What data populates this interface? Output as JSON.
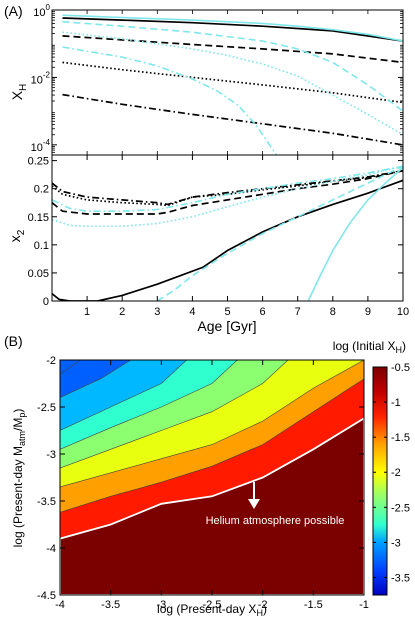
{
  "chart_data": [
    {
      "panel_label": "(A)",
      "type": "line",
      "ylabel_main": "X",
      "ylabel_sub": "H",
      "y_scale": "log",
      "ylim": [
        5e-05,
        1
      ],
      "xlim": [
        0,
        10
      ],
      "y_ticks": [
        {
          "value": 0.0001,
          "base": "10",
          "exp": "-4"
        },
        {
          "value": 0.01,
          "base": "10",
          "exp": "-2"
        },
        {
          "value": 1,
          "base": "10",
          "exp": "0"
        }
      ],
      "colors": {
        "black": "#000000",
        "cyan": "#7fe7ea"
      },
      "series": [
        {
          "color": "black",
          "dash": "solid",
          "points": [
            [
              0.3,
              0.58
            ],
            [
              2,
              0.5
            ],
            [
              4,
              0.42
            ],
            [
              6,
              0.33
            ],
            [
              8,
              0.24
            ],
            [
              10,
              0.12
            ]
          ]
        },
        {
          "color": "black",
          "dash": "dashed",
          "points": [
            [
              0.3,
              0.17
            ],
            [
              2,
              0.13
            ],
            [
              4,
              0.095
            ],
            [
              6,
              0.07
            ],
            [
              8,
              0.05
            ],
            [
              10,
              0.028
            ]
          ]
        },
        {
          "color": "black",
          "dash": "dotted",
          "points": [
            [
              0.3,
              0.028
            ],
            [
              2,
              0.017
            ],
            [
              4,
              0.01
            ],
            [
              6,
              0.006
            ],
            [
              8,
              0.0035
            ],
            [
              10,
              0.0018
            ]
          ]
        },
        {
          "color": "black",
          "dash": "dashdot",
          "points": [
            [
              0.3,
              0.0031
            ],
            [
              2,
              0.0016
            ],
            [
              4,
              0.0008
            ],
            [
              6,
              0.00042
            ],
            [
              8,
              0.00022
            ],
            [
              10,
              0.0001
            ]
          ]
        },
        {
          "color": "cyan",
          "dash": "solid",
          "points": [
            [
              0.3,
              0.7
            ],
            [
              2,
              0.6
            ],
            [
              4,
              0.5
            ],
            [
              6,
              0.4
            ],
            [
              7,
              0.33
            ],
            [
              8,
              0.26
            ],
            [
              9,
              0.19
            ],
            [
              10,
              0.12
            ]
          ]
        },
        {
          "color": "cyan",
          "dash": "dashed",
          "points": [
            [
              0.3,
              0.45
            ],
            [
              2,
              0.33
            ],
            [
              4,
              0.22
            ],
            [
              6,
              0.12
            ],
            [
              7,
              0.07
            ],
            [
              8,
              0.028
            ],
            [
              9,
              0.006
            ],
            [
              10,
              0.001
            ]
          ]
        },
        {
          "color": "cyan",
          "dash": "dotted",
          "points": [
            [
              0.3,
              0.22
            ],
            [
              2,
              0.14
            ],
            [
              4,
              0.07
            ],
            [
              5,
              0.045
            ],
            [
              6,
              0.025
            ],
            [
              7,
              0.011
            ],
            [
              8,
              0.003
            ],
            [
              9,
              0.0008
            ],
            [
              10,
              0.0002
            ]
          ]
        },
        {
          "color": "cyan",
          "dash": "dashdot",
          "points": [
            [
              0.3,
              0.08
            ],
            [
              2,
              0.04
            ],
            [
              3,
              0.022
            ],
            [
              4,
              0.009
            ],
            [
              4.7,
              0.004
            ],
            [
              5.3,
              0.0015
            ],
            [
              5.8,
              0.0004
            ],
            [
              6.2,
              0.0001
            ],
            [
              6.4,
              5e-05
            ]
          ]
        }
      ]
    },
    {
      "type": "line",
      "ylabel_main": "x",
      "ylabel_sub": "2",
      "xlabel": "Age [Gyr]",
      "xlim": [
        0,
        10
      ],
      "ylim": [
        0,
        0.26
      ],
      "x_ticks": [
        "1",
        "2",
        "3",
        "4",
        "5",
        "6",
        "7",
        "8",
        "9",
        "10"
      ],
      "y_ticks": [
        "0",
        "0.05",
        "0.1",
        "0.15",
        "0.2",
        "0.25"
      ],
      "colors": {
        "black": "#000000",
        "cyan": "#7fe7ea"
      },
      "series": [
        {
          "color": "black",
          "dash": "solid",
          "points": [
            [
              0,
              0.013
            ],
            [
              0.2,
              0.003
            ],
            [
              0.5,
              0
            ],
            [
              1.3,
              0
            ],
            [
              2,
              0.01
            ],
            [
              3,
              0.03
            ],
            [
              4.3,
              0.06
            ],
            [
              5,
              0.09
            ],
            [
              6,
              0.123
            ],
            [
              7,
              0.15
            ],
            [
              8,
              0.172
            ],
            [
              9,
              0.192
            ],
            [
              10,
              0.215
            ]
          ]
        },
        {
          "color": "black",
          "dash": "dashed",
          "points": [
            [
              0,
              0.175
            ],
            [
              0.3,
              0.16
            ],
            [
              1,
              0.155
            ],
            [
              2,
              0.155
            ],
            [
              3,
              0.155
            ],
            [
              3.3,
              0.158
            ],
            [
              4,
              0.17
            ],
            [
              5,
              0.18
            ],
            [
              6,
              0.19
            ],
            [
              7,
              0.2
            ],
            [
              8,
              0.208
            ],
            [
              9,
              0.218
            ],
            [
              10,
              0.232
            ]
          ]
        },
        {
          "color": "black",
          "dash": "dotted",
          "points": [
            [
              0,
              0.205
            ],
            [
              0.3,
              0.19
            ],
            [
              1,
              0.18
            ],
            [
              2,
              0.175
            ],
            [
              3,
              0.172
            ],
            [
              3.3,
              0.17
            ],
            [
              4,
              0.185
            ],
            [
              5,
              0.19
            ],
            [
              6,
              0.198
            ],
            [
              7,
              0.205
            ],
            [
              8,
              0.213
            ],
            [
              9,
              0.22
            ],
            [
              10,
              0.232
            ]
          ]
        },
        {
          "color": "black",
          "dash": "dashdot",
          "points": [
            [
              0,
              0.21
            ],
            [
              0.3,
              0.195
            ],
            [
              1,
              0.185
            ],
            [
              2,
              0.18
            ],
            [
              3,
              0.175
            ],
            [
              3.3,
              0.172
            ],
            [
              4,
              0.185
            ],
            [
              5,
              0.193
            ],
            [
              6,
              0.2
            ],
            [
              7,
              0.207
            ],
            [
              8,
              0.214
            ],
            [
              9,
              0.221
            ],
            [
              10,
              0.232
            ]
          ]
        },
        {
          "color": "cyan",
          "dash": "solid",
          "points": [
            [
              7.3,
              0
            ],
            [
              7.6,
              0.04
            ],
            [
              8,
              0.09
            ],
            [
              8.5,
              0.14
            ],
            [
              9,
              0.18
            ],
            [
              9.5,
              0.21
            ],
            [
              10,
              0.238
            ]
          ]
        },
        {
          "color": "cyan",
          "dash": "dashed",
          "points": [
            [
              3,
              0
            ],
            [
              3.5,
              0.02
            ],
            [
              4,
              0.045
            ],
            [
              5,
              0.085
            ],
            [
              6,
              0.12
            ],
            [
              7,
              0.15
            ],
            [
              8,
              0.18
            ],
            [
              9,
              0.21
            ],
            [
              10,
              0.24
            ]
          ]
        },
        {
          "color": "cyan",
          "dash": "dotted",
          "points": [
            [
              0,
              0.145
            ],
            [
              0.5,
              0.135
            ],
            [
              1,
              0.133
            ],
            [
              2,
              0.133
            ],
            [
              3,
              0.138
            ],
            [
              4,
              0.15
            ],
            [
              5,
              0.168
            ],
            [
              6,
              0.185
            ],
            [
              7,
              0.2
            ],
            [
              8,
              0.213
            ],
            [
              9,
              0.225
            ],
            [
              10,
              0.24
            ]
          ]
        },
        {
          "color": "cyan",
          "dash": "dashdot",
          "points": [
            [
              0,
              0.18
            ],
            [
              0.5,
              0.165
            ],
            [
              1,
              0.16
            ],
            [
              2,
              0.16
            ],
            [
              3,
              0.163
            ],
            [
              4,
              0.175
            ],
            [
              5,
              0.19
            ],
            [
              6,
              0.2
            ],
            [
              7,
              0.21
            ],
            [
              8,
              0.218
            ],
            [
              9,
              0.228
            ],
            [
              10,
              0.24
            ]
          ]
        }
      ]
    },
    {
      "panel_label": "(B)",
      "type": "heatmap",
      "xlabel_main": "log (Present-day X",
      "xlabel_sub": "H",
      "xlabel_end": ")",
      "ylabel_main": "log (Present-day M",
      "ylabel_sub1": "atm",
      "ylabel_mid": "/M",
      "ylabel_sub2": "p",
      "ylabel_end": ")",
      "xlim": [
        -4,
        -1
      ],
      "ylim": [
        -4.5,
        -2
      ],
      "x_ticks": [
        "-4",
        "-3.5",
        "-3",
        "-2.5",
        "-2",
        "-1.5",
        "-1"
      ],
      "y_ticks": [
        "-4.5",
        "-4",
        "-3.5",
        "-3",
        "-2.5",
        "-2"
      ],
      "annotation": "Helium atmosphere possible",
      "colorbar_title_main": "log (Initial X",
      "colorbar_title_sub": "H",
      "colorbar_title_end": ")",
      "colorbar_range": [
        -3.75,
        -0.5
      ],
      "colorbar_ticks": [
        "-0.5",
        "-1",
        "-1.5",
        "-2",
        "-2.5",
        "-3",
        "-3.5"
      ],
      "colors": {
        "maroon": "#7b0000",
        "red": "#ff1a00",
        "orange": "#ffa000",
        "yellow": "#e8ff10",
        "green": "#8cff70",
        "cyan": "#30ffd0",
        "lightblue": "#00b8ff",
        "blue": "#0060ff",
        "boundary": "#ffffff"
      },
      "bands": [
        {
          "color": "maroon",
          "boundary": [
            [
              -4,
              -3.9
            ],
            [
              -3.5,
              -3.75
            ],
            [
              -3,
              -3.53
            ],
            [
              -2.5,
              -3.45
            ],
            [
              -2,
              -3.25
            ],
            [
              -1.5,
              -2.95
            ],
            [
              -1,
              -2.62
            ]
          ]
        },
        {
          "color": "red",
          "boundary": [
            [
              -4,
              -3.62
            ],
            [
              -3.5,
              -3.45
            ],
            [
              -3,
              -3.3
            ],
            [
              -2.5,
              -3.13
            ],
            [
              -2,
              -2.9
            ],
            [
              -1.5,
              -2.55
            ],
            [
              -1,
              -2.2
            ]
          ]
        },
        {
          "color": "orange",
          "boundary": [
            [
              -4,
              -3.35
            ],
            [
              -3.5,
              -3.2
            ],
            [
              -3,
              -3.05
            ],
            [
              -2.5,
              -2.9
            ],
            [
              -2,
              -2.65
            ],
            [
              -1.5,
              -2.3
            ],
            [
              -1,
              -2
            ]
          ]
        },
        {
          "color": "yellow",
          "boundary": [
            [
              -4,
              -3.15
            ],
            [
              -3.5,
              -2.95
            ],
            [
              -3,
              -2.75
            ],
            [
              -2.5,
              -2.55
            ],
            [
              -2,
              -2.25
            ],
            [
              -1.75,
              -2
            ]
          ]
        },
        {
          "color": "green",
          "boundary": [
            [
              -4,
              -2.95
            ],
            [
              -3.5,
              -2.72
            ],
            [
              -3,
              -2.5
            ],
            [
              -2.5,
              -2.25
            ],
            [
              -2.25,
              -2
            ]
          ]
        },
        {
          "color": "cyan",
          "boundary": [
            [
              -4,
              -2.75
            ],
            [
              -3.5,
              -2.5
            ],
            [
              -3,
              -2.25
            ],
            [
              -2.75,
              -2
            ]
          ]
        },
        {
          "color": "lightblue",
          "boundary": [
            [
              -4,
              -2.4
            ],
            [
              -3.6,
              -2.2
            ],
            [
              -3.3,
              -2
            ]
          ]
        },
        {
          "color": "blue",
          "boundary": [
            [
              -4,
              -2.15
            ],
            [
              -3.8,
              -2
            ]
          ]
        }
      ],
      "colorbar_stops": [
        {
          "value": -3.75,
          "color": "#0000c0"
        },
        {
          "value": -3.4,
          "color": "#0040ff"
        },
        {
          "value": -3.0,
          "color": "#00a0ff"
        },
        {
          "value": -2.75,
          "color": "#30ffd0"
        },
        {
          "value": -2.3,
          "color": "#a0ff60"
        },
        {
          "value": -2.0,
          "color": "#ffff00"
        },
        {
          "value": -1.6,
          "color": "#ffa000"
        },
        {
          "value": -1.2,
          "color": "#ff2000"
        },
        {
          "value": -0.85,
          "color": "#c00000"
        },
        {
          "value": -0.5,
          "color": "#7b0000"
        }
      ]
    }
  ]
}
